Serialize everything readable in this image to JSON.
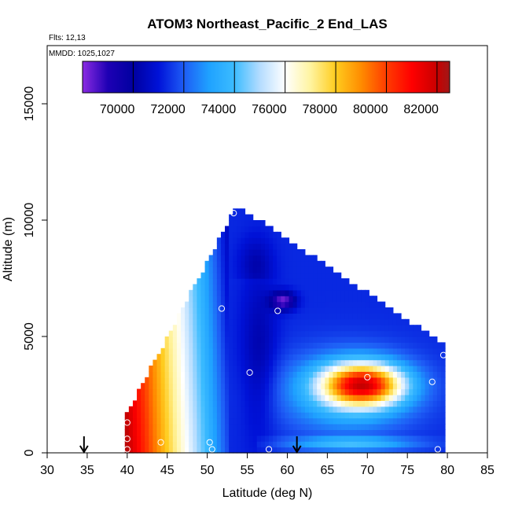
{
  "chart_data": {
    "type": "heatmap",
    "title": "ATOM3 Northeast_Pacific_2 End_LAS",
    "annotations": [
      "Flts: 12,13",
      "MMDD: 1025,1027"
    ],
    "xlabel": "Latitude (deg N)",
    "ylabel": "Altitude (m)",
    "xlim": [
      30,
      85
    ],
    "ylim": [
      0,
      17500
    ],
    "x_ticks": [
      "30",
      "35",
      "40",
      "45",
      "50",
      "55",
      "60",
      "65",
      "70",
      "75",
      "80",
      "85"
    ],
    "y_ticks": [
      "0",
      "5000",
      "10000",
      "15000"
    ],
    "grid": false,
    "legend": "colorbar-top",
    "colorbar": {
      "range": [
        68000,
        82500
      ],
      "ticks": [
        "70000",
        "72000",
        "74000",
        "76000",
        "78000",
        "80000",
        "82000"
      ],
      "stops": [
        {
          "value": 68000,
          "color": "#8b2be2"
        },
        {
          "value": 69000,
          "color": "#1e00b4"
        },
        {
          "value": 70000,
          "color": "#0000a0"
        },
        {
          "value": 71000,
          "color": "#0012d8"
        },
        {
          "value": 72000,
          "color": "#1e5cf5"
        },
        {
          "value": 73000,
          "color": "#1fa2ff"
        },
        {
          "value": 74000,
          "color": "#3cbcff"
        },
        {
          "value": 75000,
          "color": "#b4dcff"
        },
        {
          "value": 76000,
          "color": "#ffffff"
        },
        {
          "value": 77000,
          "color": "#fff4a0"
        },
        {
          "value": 78000,
          "color": "#ffcc1e"
        },
        {
          "value": 79000,
          "color": "#ff8c00"
        },
        {
          "value": 80000,
          "color": "#ff3c00"
        },
        {
          "value": 81000,
          "color": "#ff0000"
        },
        {
          "value": 82000,
          "color": "#c80000"
        },
        {
          "value": 82500,
          "color": "#a01818"
        }
      ]
    },
    "profile_points": [
      {
        "lat": 40,
        "alt": 150
      },
      {
        "lat": 40,
        "alt": 600
      },
      {
        "lat": 40,
        "alt": 1300
      },
      {
        "lat": 44.2,
        "alt": 450
      },
      {
        "lat": 50.3,
        "alt": 450
      },
      {
        "lat": 50.6,
        "alt": 150
      },
      {
        "lat": 51.8,
        "alt": 6200
      },
      {
        "lat": 53.3,
        "alt": 10300
      },
      {
        "lat": 55.3,
        "alt": 3450
      },
      {
        "lat": 57.7,
        "alt": 150
      },
      {
        "lat": 58.8,
        "alt": 6100
      },
      {
        "lat": 70,
        "alt": 3250
      },
      {
        "lat": 78.1,
        "alt": 3050
      },
      {
        "lat": 78.8,
        "alt": 150
      },
      {
        "lat": 79.5,
        "alt": 4200
      }
    ],
    "arrows": [
      {
        "lat": 34.6
      },
      {
        "lat": 61.2
      }
    ]
  }
}
